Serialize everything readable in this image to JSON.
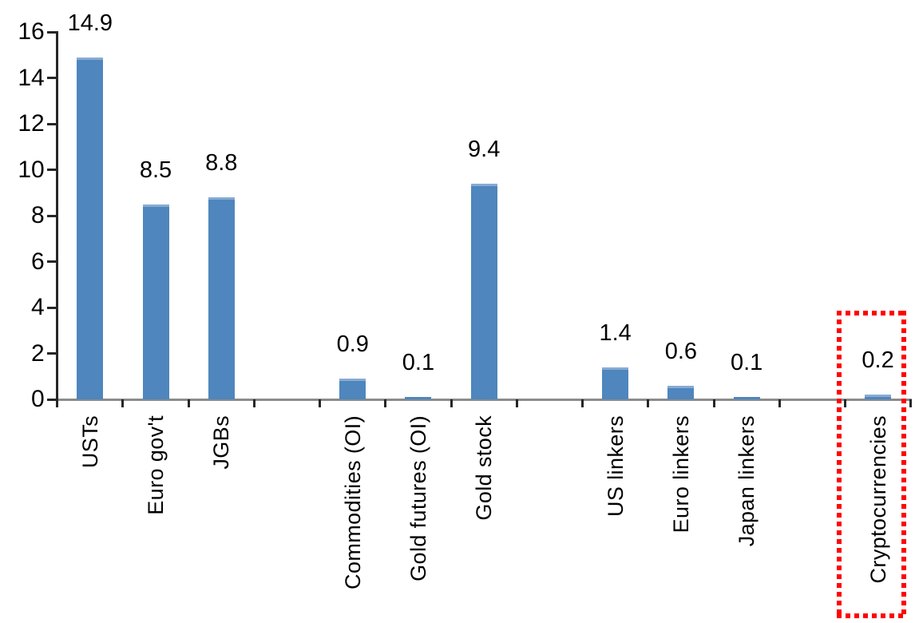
{
  "chart_data": {
    "type": "bar",
    "categories": [
      "USTs",
      "Euro gov't",
      "JGBs",
      "",
      "Commodities (OI)",
      "Gold futures (OI)",
      "Gold stock",
      "",
      "US linkers",
      "Euro linkers",
      "Japan linkers",
      "",
      "Cryptocurrencies"
    ],
    "values": [
      14.9,
      8.5,
      8.8,
      null,
      0.9,
      0.1,
      9.4,
      null,
      1.4,
      0.6,
      0.1,
      null,
      0.2
    ],
    "value_labels": [
      "14.9",
      "8.5",
      "8.8",
      "",
      "0.9",
      "0.1",
      "9.4",
      "",
      "1.4",
      "0.6",
      "0.1",
      "",
      "0.2"
    ],
    "ylim": [
      0,
      16
    ],
    "yticks": [
      0,
      2,
      4,
      6,
      8,
      10,
      12,
      14,
      16
    ],
    "grid": false,
    "legend": "none",
    "xlabel": "",
    "ylabel": "",
    "bar_color": "#4E86BD",
    "bar_top_edge_color": "#87ABD3",
    "axis_line_color": "#8C8C8C",
    "tick_color": "#262626",
    "label_color": "#000000",
    "highlight": {
      "category": "Cryptocurrencies",
      "style": "red-dotted-box",
      "color": "#FF0000"
    }
  }
}
